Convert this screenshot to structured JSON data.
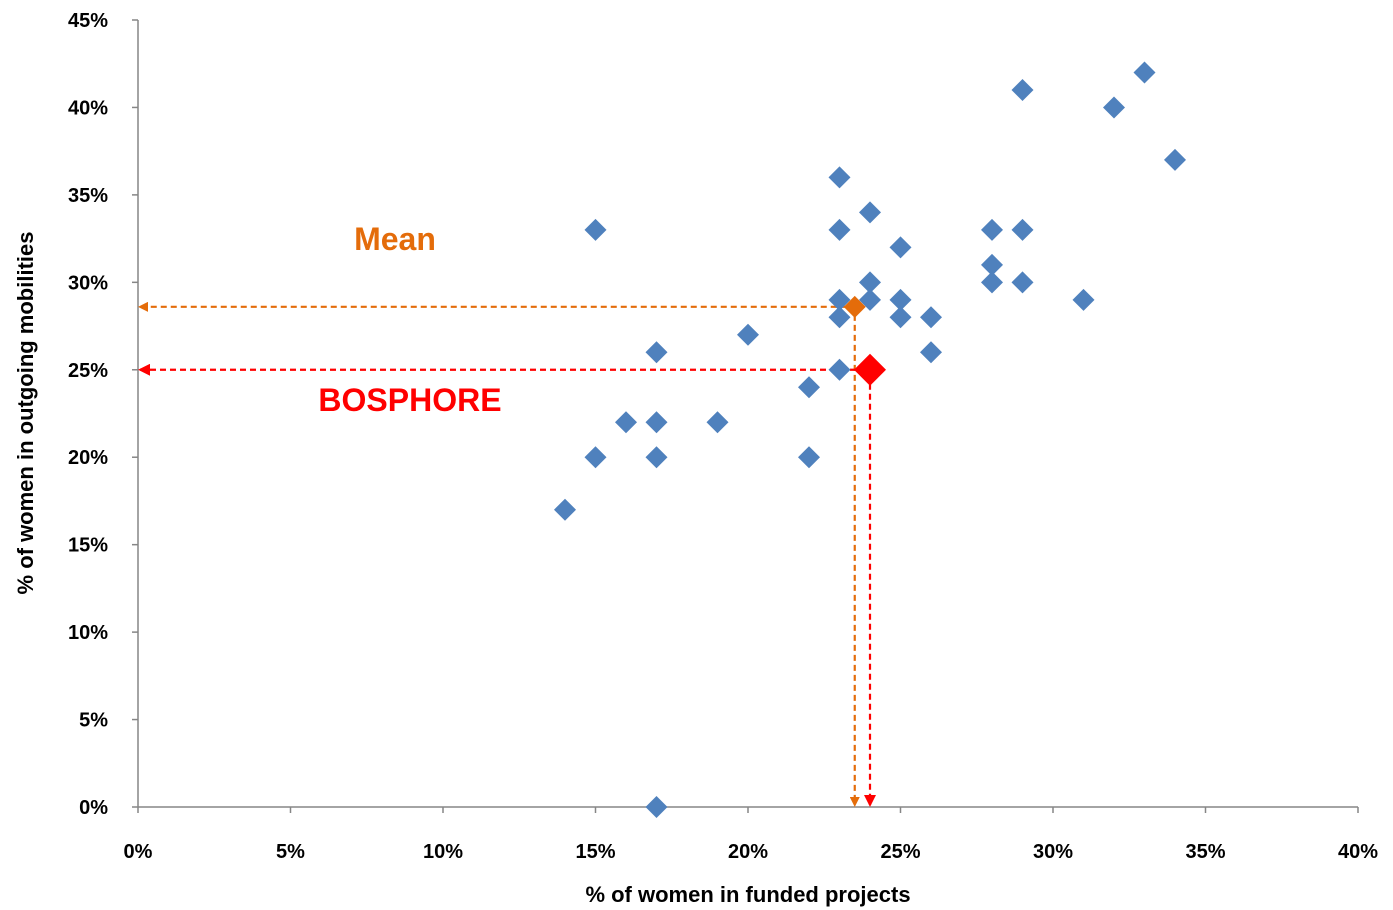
{
  "chart_data": {
    "type": "scatter",
    "title": "",
    "xlabel": "% of women in funded projects",
    "ylabel": "% of women in outgoing mobilities",
    "xlim": [
      0,
      40
    ],
    "ylim": [
      0,
      45
    ],
    "x_ticks": [
      0,
      5,
      10,
      15,
      20,
      25,
      30,
      35,
      40
    ],
    "y_ticks": [
      0,
      5,
      10,
      15,
      20,
      25,
      30,
      35,
      40,
      45
    ],
    "x_tick_labels": [
      "0%",
      "5%",
      "10%",
      "15%",
      "20%",
      "25%",
      "30%",
      "35%",
      "40%"
    ],
    "y_tick_labels": [
      "0%",
      "5%",
      "10%",
      "15%",
      "20%",
      "25%",
      "30%",
      "35%",
      "40%",
      "45%"
    ],
    "grid": false,
    "marker": "diamond",
    "colors": {
      "points": "#4F81BD",
      "mean": "#E46C0A",
      "highlight": "#FF0000",
      "axis": "#868686"
    },
    "series": [
      {
        "points": [
          {
            "x": 14,
            "y": 17
          },
          {
            "x": 15,
            "y": 33
          },
          {
            "x": 15,
            "y": 20
          },
          {
            "x": 16,
            "y": 22
          },
          {
            "x": 17,
            "y": 26
          },
          {
            "x": 17,
            "y": 22
          },
          {
            "x": 17,
            "y": 20
          },
          {
            "x": 17,
            "y": 0
          },
          {
            "x": 19,
            "y": 22
          },
          {
            "x": 20,
            "y": 27
          },
          {
            "x": 22,
            "y": 24
          },
          {
            "x": 22,
            "y": 20
          },
          {
            "x": 23,
            "y": 36
          },
          {
            "x": 23,
            "y": 33
          },
          {
            "x": 23,
            "y": 29
          },
          {
            "x": 23,
            "y": 28
          },
          {
            "x": 23,
            "y": 25
          },
          {
            "x": 24,
            "y": 34
          },
          {
            "x": 24,
            "y": 30
          },
          {
            "x": 24,
            "y": 29
          },
          {
            "x": 25,
            "y": 32
          },
          {
            "x": 25,
            "y": 29
          },
          {
            "x": 25,
            "y": 28
          },
          {
            "x": 26,
            "y": 28
          },
          {
            "x": 26,
            "y": 26
          },
          {
            "x": 28,
            "y": 33
          },
          {
            "x": 28,
            "y": 31
          },
          {
            "x": 28,
            "y": 30
          },
          {
            "x": 29,
            "y": 41
          },
          {
            "x": 29,
            "y": 33
          },
          {
            "x": 29,
            "y": 30
          },
          {
            "x": 31,
            "y": 29
          },
          {
            "x": 32,
            "y": 40
          },
          {
            "x": 33,
            "y": 42
          },
          {
            "x": 34,
            "y": 37
          }
        ]
      }
    ],
    "mean": {
      "label": "Mean",
      "x": 23.5,
      "y": 28.6
    },
    "highlight": {
      "label": "BOSPHORE",
      "x": 24,
      "y": 25
    }
  }
}
